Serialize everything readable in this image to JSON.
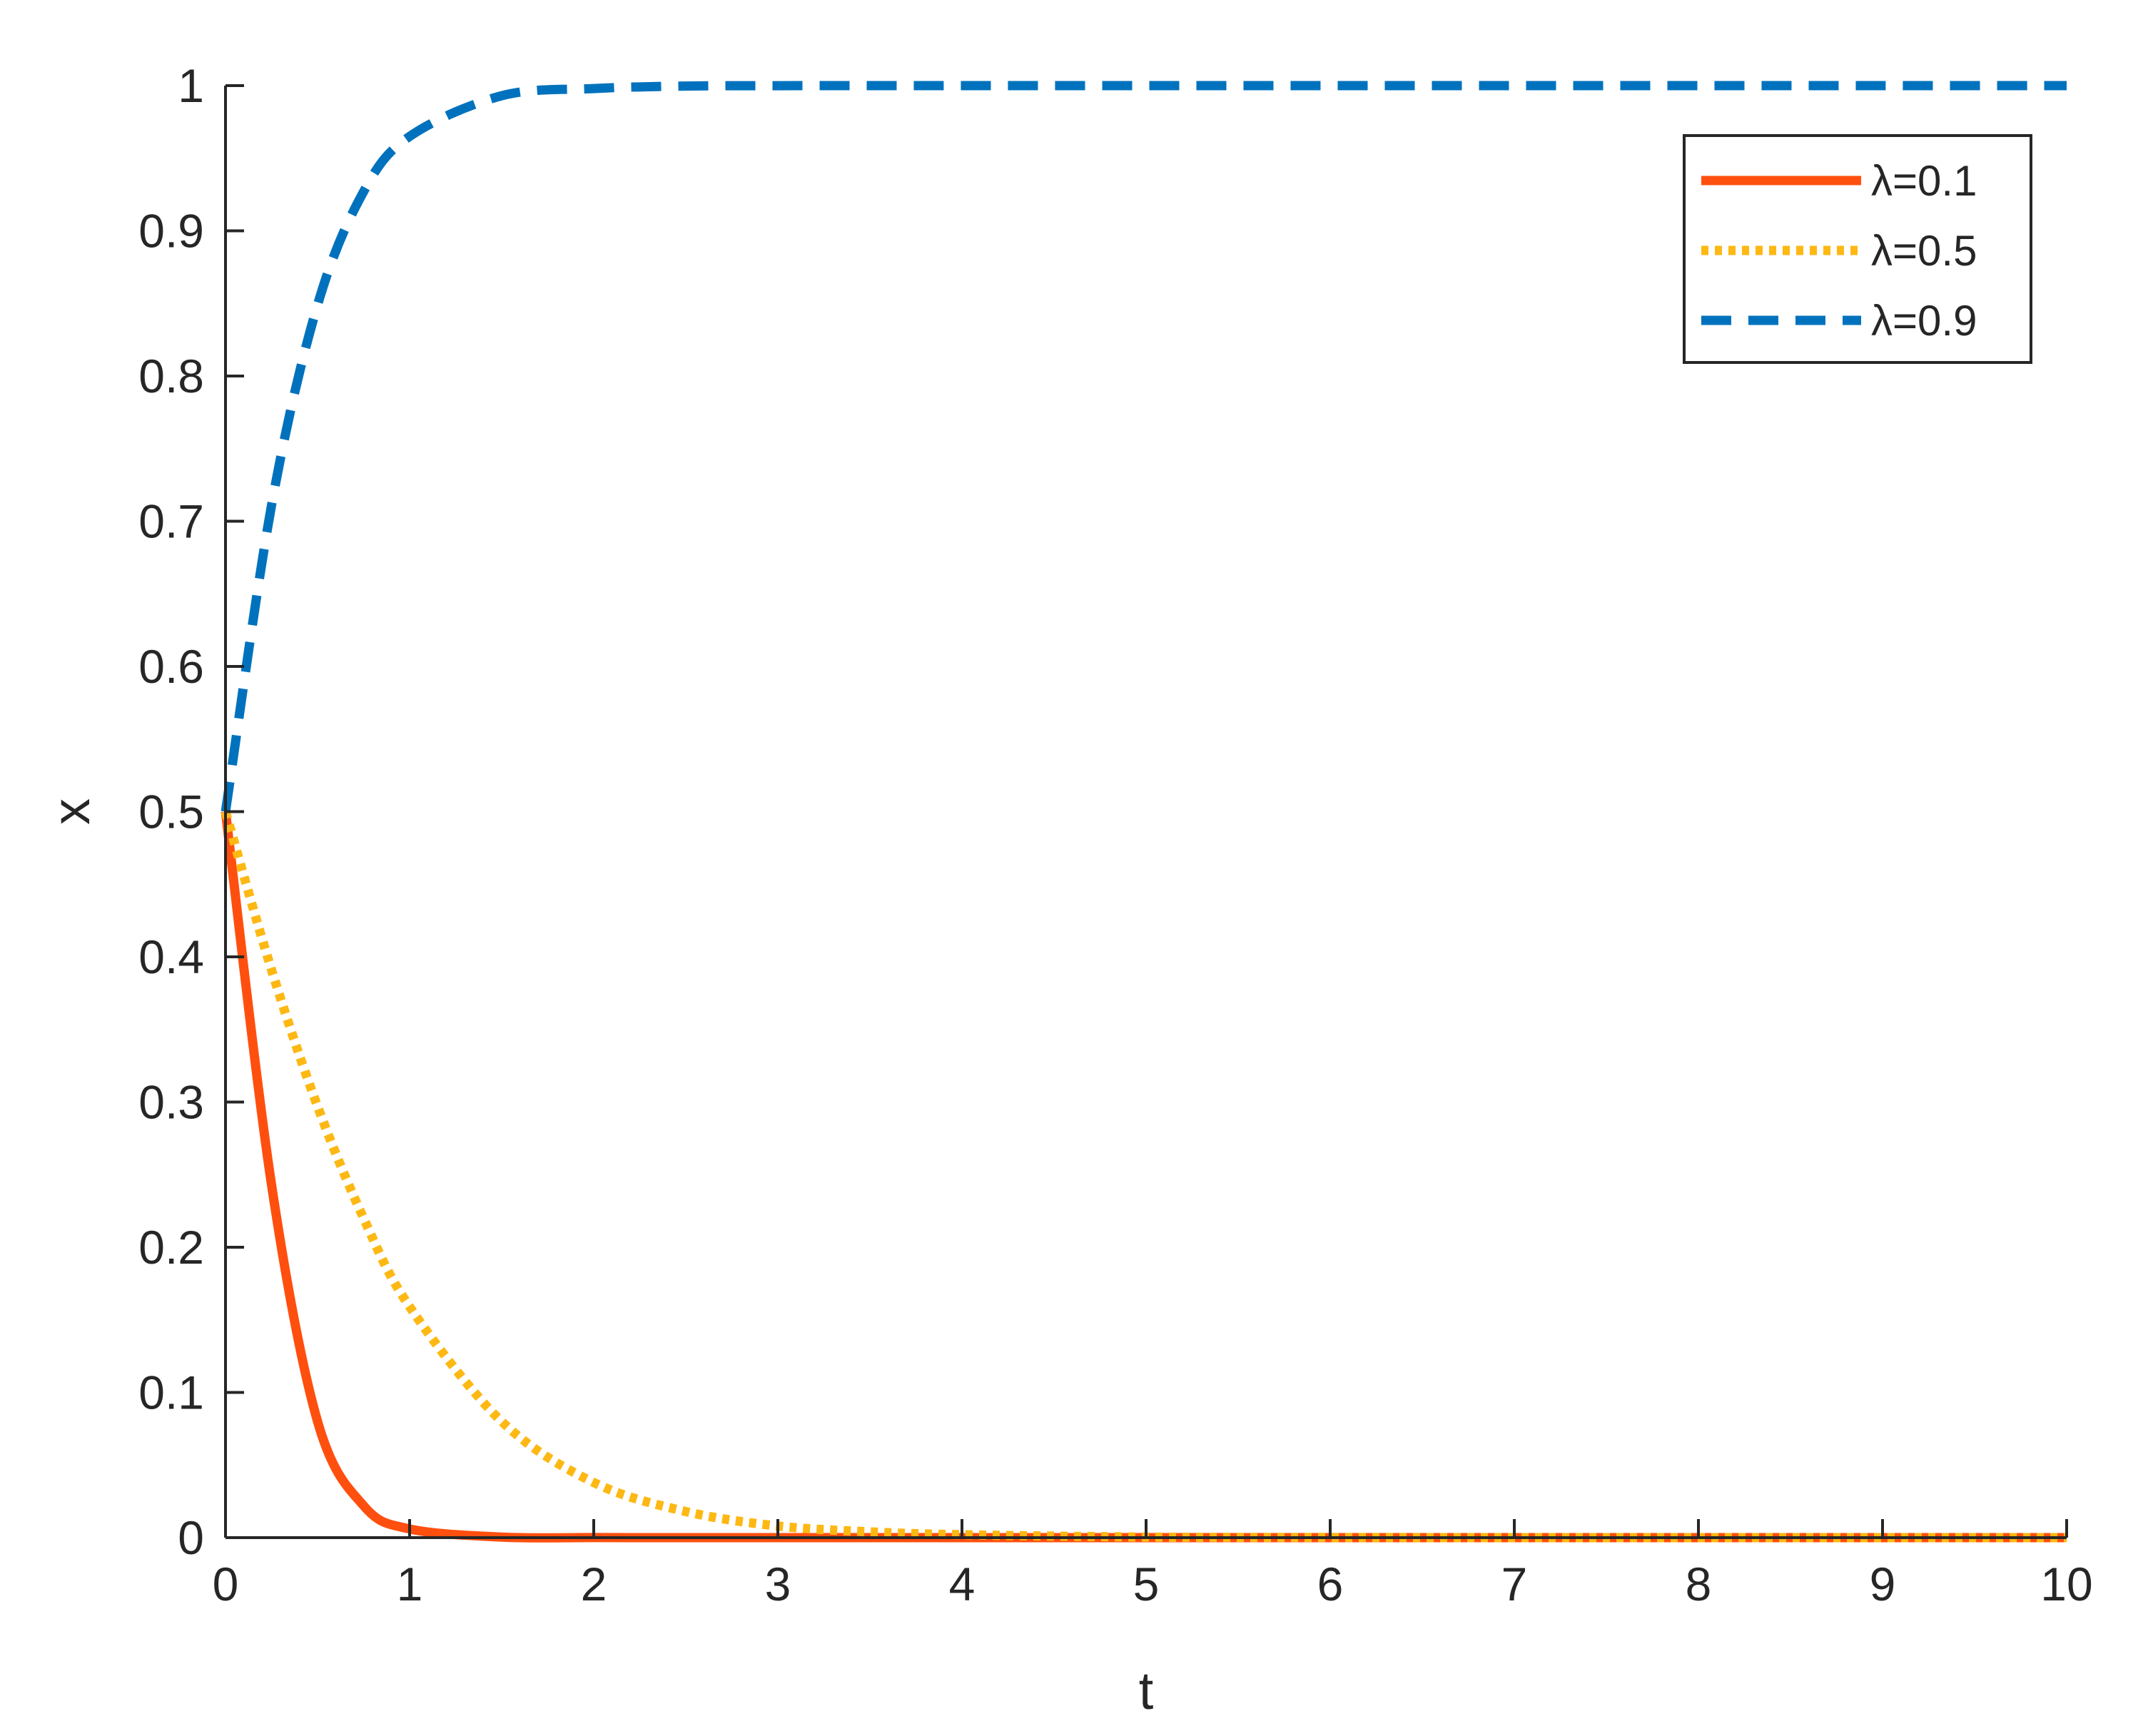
{
  "chart_data": {
    "type": "line",
    "title": "",
    "xlabel": "t",
    "ylabel": "x",
    "xlim": [
      0,
      10
    ],
    "ylim": [
      0,
      1
    ],
    "grid": false,
    "legend_position": "top-right",
    "x_ticks": [
      "0",
      "1",
      "2",
      "3",
      "4",
      "5",
      "6",
      "7",
      "8",
      "9",
      "10"
    ],
    "y_ticks": [
      "0",
      "0.1",
      "0.2",
      "0.3",
      "0.4",
      "0.5",
      "0.6",
      "0.7",
      "0.8",
      "0.9",
      "1"
    ],
    "x": [
      0,
      0.25,
      0.5,
      0.75,
      1,
      1.5,
      2,
      2.5,
      3,
      3.5,
      4,
      5,
      6,
      7,
      8,
      9,
      10
    ],
    "series": [
      {
        "name": "λ=0.1",
        "color": "#FF4F0F",
        "style": "solid",
        "values": [
          0.5,
          0.243,
          0.08,
          0.022,
          0.006,
          0.0004,
          3e-05,
          0,
          0,
          0,
          0,
          0,
          0,
          0,
          0,
          0,
          0
        ]
      },
      {
        "name": "λ=0.5",
        "color": "#FDB813",
        "style": "dotted",
        "values": [
          0.5,
          0.391,
          0.297,
          0.22,
          0.159,
          0.08,
          0.038,
          0.018,
          0.008,
          0.004,
          0.002,
          0.0004,
          0.0001,
          0,
          0,
          0,
          0
        ]
      },
      {
        "name": "λ=0.9",
        "color": "#0072BD",
        "style": "dashed",
        "values": [
          0.5,
          0.711,
          0.849,
          0.927,
          0.965,
          0.993,
          0.998,
          0.9997,
          0.99995,
          1,
          1,
          1,
          1,
          1,
          1,
          1,
          1
        ]
      }
    ]
  }
}
